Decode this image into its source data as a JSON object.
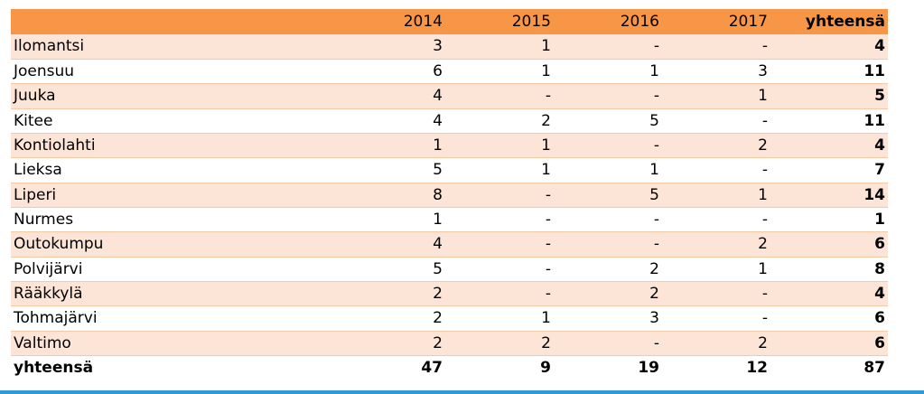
{
  "table": {
    "header": [
      "",
      "2014",
      "2015",
      "2016",
      "2017",
      "yhteensä"
    ],
    "rows": [
      [
        "Ilomantsi",
        "3",
        "1",
        "-",
        "-",
        "4"
      ],
      [
        "Joensuu",
        "6",
        "1",
        "1",
        "3",
        "11"
      ],
      [
        "Juuka",
        "4",
        "-",
        "-",
        "1",
        "5"
      ],
      [
        "Kitee",
        "4",
        "2",
        "5",
        "-",
        "11"
      ],
      [
        "Kontiolahti",
        "1",
        "1",
        "-",
        "2",
        "4"
      ],
      [
        "Lieksa",
        "5",
        "1",
        "1",
        "-",
        "7"
      ],
      [
        "Liperi",
        "8",
        "-",
        "5",
        "1",
        "14"
      ],
      [
        "Nurmes",
        "1",
        "-",
        "-",
        "-",
        "1"
      ],
      [
        "Outokumpu",
        "4",
        "-",
        "-",
        "2",
        "6"
      ],
      [
        "Polvijärvi",
        "5",
        "-",
        "2",
        "1",
        "8"
      ],
      [
        "Rääkkylä",
        "2",
        "-",
        "2",
        "-",
        "4"
      ],
      [
        "Tohmajärvi",
        "2",
        "1",
        "3",
        "-",
        "6"
      ],
      [
        "Valtimo",
        "2",
        "2",
        "-",
        "2",
        "6"
      ]
    ],
    "total": [
      "yhteensä",
      "47",
      "9",
      "19",
      "12",
      "87"
    ]
  },
  "colors": {
    "header_bg": "#f79646",
    "band_bg": "#fce4d6",
    "bottom_rule": "#2e9bd6"
  }
}
